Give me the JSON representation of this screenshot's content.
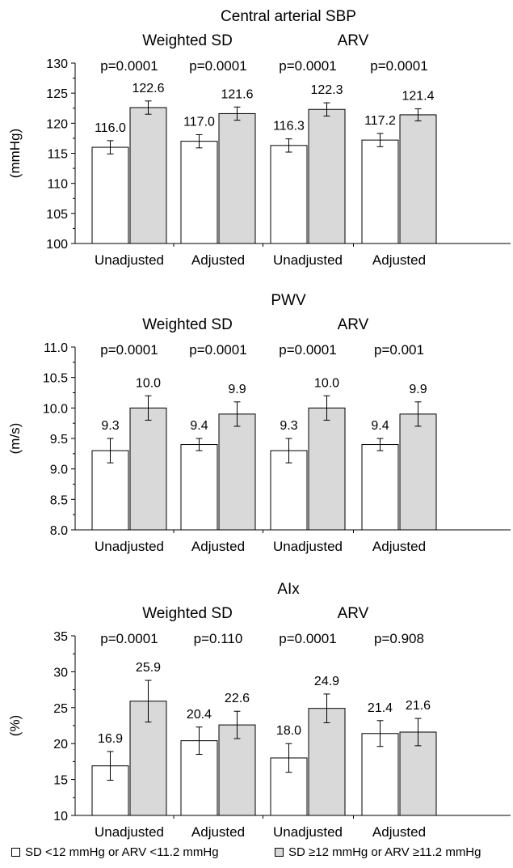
{
  "chart_data": [
    {
      "type": "bar",
      "title": "Central arterial SBP",
      "ylabel": "(mmHg)",
      "ylim": [
        100,
        130
      ],
      "ytick_step": 5,
      "yticks": [
        "100",
        "105",
        "110",
        "115",
        "120",
        "125",
        "130"
      ],
      "group_labels": [
        "Weighted SD",
        "ARV"
      ],
      "categories": [
        "Unadjusted",
        "Adjusted",
        "Unadjusted",
        "Adjusted"
      ],
      "p_values": [
        "p=0.0001",
        "p=0.0001",
        "p=0.0001",
        "p=0.0001"
      ],
      "series": [
        {
          "values": [
            116.0,
            117.0,
            116.3,
            117.2
          ],
          "labels": [
            "116.0",
            "117.0",
            "116.3",
            "117.2"
          ],
          "errors": [
            1.1,
            1.1,
            1.1,
            1.1
          ]
        },
        {
          "values": [
            122.6,
            121.6,
            122.3,
            121.4
          ],
          "labels": [
            "122.6",
            "121.6",
            "122.3",
            "121.4"
          ],
          "errors": [
            1.1,
            1.1,
            1.1,
            1.0
          ]
        }
      ]
    },
    {
      "type": "bar",
      "title": "PWV",
      "ylabel": "(m/s)",
      "ylim": [
        8.0,
        11.0
      ],
      "ytick_step": 0.5,
      "yticks": [
        "8.0",
        "8.5",
        "9.0",
        "9.5",
        "10.0",
        "10.5",
        "11.0"
      ],
      "group_labels": [
        "Weighted SD",
        "ARV"
      ],
      "categories": [
        "Unadjusted",
        "Adjusted",
        "Unadjusted",
        "Adjusted"
      ],
      "p_values": [
        "p=0.0001",
        "p=0.0001",
        "p=0.0001",
        "p=0.001"
      ],
      "series": [
        {
          "values": [
            9.3,
            9.4,
            9.3,
            9.4
          ],
          "labels": [
            "9.3",
            "9.4",
            "9.3",
            "9.4"
          ],
          "errors": [
            0.2,
            0.1,
            0.2,
            0.1
          ]
        },
        {
          "values": [
            10.0,
            9.9,
            10.0,
            9.9
          ],
          "labels": [
            "10.0",
            "9.9",
            "10.0",
            "9.9"
          ],
          "errors": [
            0.2,
            0.2,
            0.2,
            0.2
          ]
        }
      ]
    },
    {
      "type": "bar",
      "title": "AIx",
      "ylabel": "(%)",
      "ylim": [
        10,
        35
      ],
      "ytick_step": 5,
      "yticks": [
        "10",
        "15",
        "20",
        "25",
        "30",
        "35"
      ],
      "group_labels": [
        "Weighted SD",
        "ARV"
      ],
      "categories": [
        "Unadjusted",
        "Adjusted",
        "Unadjusted",
        "Adjusted"
      ],
      "p_values": [
        "p=0.0001",
        "p=0.110",
        "p=0.0001",
        "p=0.908"
      ],
      "series": [
        {
          "values": [
            16.9,
            20.4,
            18.0,
            21.4
          ],
          "labels": [
            "16.9",
            "20.4",
            "18.0",
            "21.4"
          ],
          "errors": [
            2.0,
            1.9,
            2.0,
            1.8
          ]
        },
        {
          "values": [
            25.9,
            22.6,
            24.9,
            21.6
          ],
          "labels": [
            "25.9",
            "22.6",
            "24.9",
            "21.6"
          ],
          "errors": [
            2.9,
            1.9,
            2.0,
            1.9
          ]
        }
      ]
    }
  ],
  "legend": {
    "items": [
      {
        "label": "SD <12 mmHg or ARV <11.2 mmHg",
        "color": "#ffffff"
      },
      {
        "label": "SD ≥12 mmHg or ARV ≥11.2 mmHg",
        "color": "#d9d9d9"
      }
    ]
  },
  "colors": {
    "bar_low": "#ffffff",
    "bar_high": "#d9d9d9",
    "stroke": "#000000"
  }
}
